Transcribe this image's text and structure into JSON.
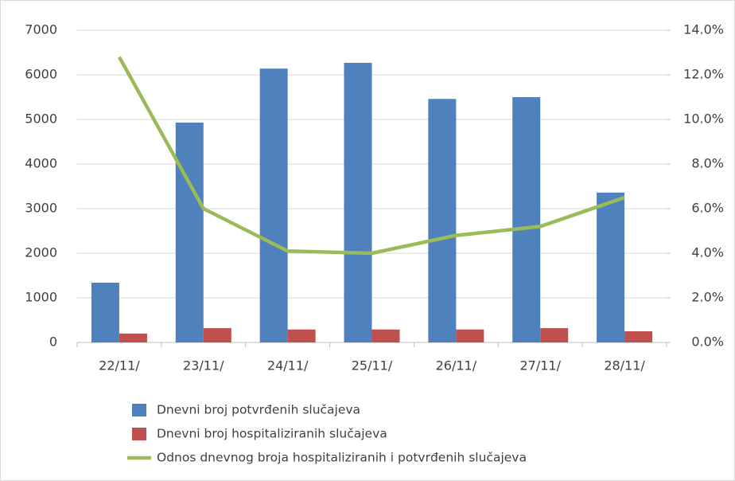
{
  "chart_data": {
    "type": "bar",
    "categories": [
      "22/11/",
      "23/11/",
      "24/11/",
      "25/11/",
      "26/11/",
      "27/11/",
      "28/11/"
    ],
    "series": [
      {
        "name": "Dnevni broj potvrđenih slučajeva",
        "color": "#4f81bd",
        "type": "bar",
        "values": [
          1340,
          4930,
          6140,
          6270,
          5460,
          5500,
          3360
        ]
      },
      {
        "name": "Dnevni broj hospitaliziranih slučajeva",
        "color": "#c0504d",
        "type": "bar",
        "values": [
          200,
          320,
          290,
          290,
          290,
          320,
          250
        ]
      },
      {
        "name": "Odnos dnevnog broja hospitaliziranih i potvrđenih slučajeva",
        "color": "#9bbb59",
        "type": "line",
        "axis": "y2",
        "values": [
          12.8,
          6.0,
          4.1,
          4.0,
          4.8,
          5.2,
          6.5
        ]
      }
    ],
    "ylim": [
      0,
      7000
    ],
    "yticks": [
      0,
      1000,
      2000,
      3000,
      4000,
      5000,
      6000,
      7000
    ],
    "y2lim": [
      0,
      14
    ],
    "y2ticks": [
      {
        "value": 0,
        "label": "0.0%"
      },
      {
        "value": 2,
        "label": "2.0%"
      },
      {
        "value": 4,
        "label": "4.0%"
      },
      {
        "value": 6,
        "label": "6.0%"
      },
      {
        "value": 8,
        "label": "8.0%"
      },
      {
        "value": 10,
        "label": "10.0%"
      },
      {
        "value": 12,
        "label": "12.0%"
      },
      {
        "value": 14,
        "label": "14.0%"
      }
    ],
    "grid": true,
    "legend": "bottom"
  }
}
